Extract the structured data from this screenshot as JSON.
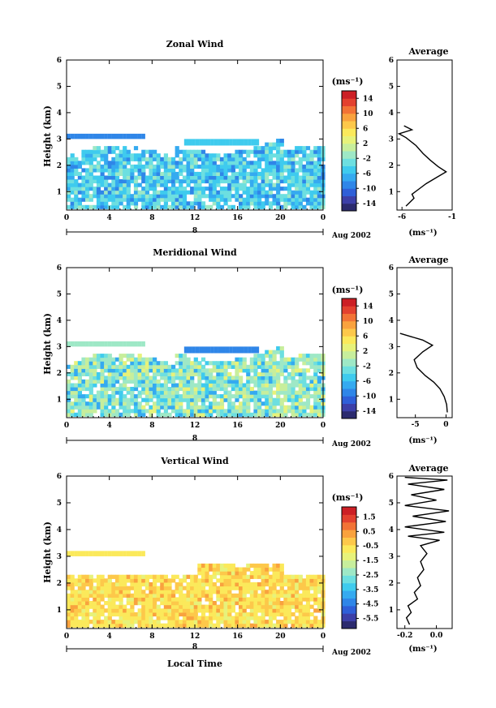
{
  "chart_data": [
    {
      "type": "heatmap",
      "title": "Zonal Wind",
      "ylabel": "Height (km)",
      "x_ticks": [
        "0",
        "4",
        "8",
        "12",
        "16",
        "20",
        "0"
      ],
      "xlim": [
        0,
        24
      ],
      "ylim": [
        0.3,
        6
      ],
      "y_ticks": [
        "1",
        "2",
        "3",
        "4",
        "5",
        "6"
      ],
      "colorbar": {
        "unit": "(ms⁻¹)",
        "range": [
          -16,
          16
        ],
        "ticks": [
          "14",
          "10",
          "6",
          "2",
          "-2",
          "-6",
          "-10",
          "-14"
        ]
      },
      "date_bar": {
        "label": "8",
        "trailing": "Aug 2002"
      },
      "profile": {
        "title": "Average",
        "x_ticks": [
          "-6",
          "-1"
        ],
        "xlim": [
          -6.5,
          -1
        ],
        "xlabel": "(ms⁻¹)",
        "points": [
          [
            -5.6,
            0.45
          ],
          [
            -5.2,
            0.6
          ],
          [
            -4.8,
            0.75
          ],
          [
            -5.0,
            0.9
          ],
          [
            -4.3,
            1.1
          ],
          [
            -3.6,
            1.3
          ],
          [
            -2.5,
            1.55
          ],
          [
            -1.6,
            1.75
          ],
          [
            -2.4,
            1.95
          ],
          [
            -3.2,
            2.2
          ],
          [
            -3.9,
            2.45
          ],
          [
            -4.6,
            2.75
          ],
          [
            -5.6,
            3.05
          ],
          [
            -6.3,
            3.2
          ],
          [
            -5.0,
            3.35
          ],
          [
            -5.8,
            3.5
          ]
        ]
      }
    },
    {
      "type": "heatmap",
      "title": "Meridional Wind",
      "ylabel": "Height (km)",
      "x_ticks": [
        "0",
        "4",
        "8",
        "12",
        "16",
        "20",
        "0"
      ],
      "xlim": [
        0,
        24
      ],
      "ylim": [
        0.3,
        6
      ],
      "y_ticks": [
        "1",
        "2",
        "3",
        "4",
        "5",
        "6"
      ],
      "colorbar": {
        "unit": "(ms⁻¹)",
        "range": [
          -16,
          16
        ],
        "ticks": [
          "14",
          "10",
          "6",
          "2",
          "-2",
          "-6",
          "-10",
          "-14"
        ]
      },
      "date_bar": {
        "label": "8",
        "trailing": "Aug 2002"
      },
      "profile": {
        "title": "Average",
        "x_ticks": [
          "-5",
          "0"
        ],
        "xlim": [
          -8,
          1
        ],
        "xlabel": "(ms⁻¹)",
        "points": [
          [
            0.2,
            0.5
          ],
          [
            0.1,
            0.8
          ],
          [
            -0.3,
            1.1
          ],
          [
            -1.0,
            1.4
          ],
          [
            -2.0,
            1.65
          ],
          [
            -3.4,
            1.9
          ],
          [
            -4.7,
            2.2
          ],
          [
            -5.2,
            2.5
          ],
          [
            -3.8,
            2.8
          ],
          [
            -2.2,
            3.05
          ],
          [
            -3.8,
            3.25
          ],
          [
            -6.0,
            3.4
          ],
          [
            -7.5,
            3.5
          ]
        ]
      }
    },
    {
      "type": "heatmap",
      "title": "Vertical Wind",
      "ylabel": "Height (km)",
      "xlabel": "Local Time",
      "x_ticks": [
        "0",
        "4",
        "8",
        "12",
        "16",
        "20",
        "0"
      ],
      "xlim": [
        0,
        24
      ],
      "ylim": [
        0.3,
        6
      ],
      "y_ticks": [
        "1",
        "2",
        "3",
        "4",
        "5",
        "6"
      ],
      "colorbar": {
        "unit": "(ms⁻¹)",
        "range": [
          -6.2,
          2.2
        ],
        "ticks": [
          "1.5",
          "0.5",
          "-0.5",
          "-1.5",
          "-2.5",
          "-3.5",
          "-4.5",
          "-5.5"
        ]
      },
      "date_bar": {
        "label": "8",
        "trailing": "Aug 2002"
      },
      "profile": {
        "title": "Average",
        "x_ticks": [
          "-0.2",
          "0.0"
        ],
        "xlim": [
          -0.25,
          0.1
        ],
        "xlabel": "(ms⁻¹)",
        "points": [
          [
            -0.17,
            0.45
          ],
          [
            -0.19,
            0.7
          ],
          [
            -0.16,
            0.9
          ],
          [
            -0.18,
            1.15
          ],
          [
            -0.12,
            1.4
          ],
          [
            -0.14,
            1.65
          ],
          [
            -0.1,
            1.9
          ],
          [
            -0.12,
            2.2
          ],
          [
            -0.08,
            2.5
          ],
          [
            -0.1,
            2.8
          ],
          [
            -0.06,
            3.1
          ],
          [
            -0.1,
            3.4
          ],
          [
            0.02,
            3.6
          ],
          [
            -0.18,
            3.75
          ],
          [
            0.05,
            3.9
          ],
          [
            -0.2,
            4.1
          ],
          [
            0.06,
            4.3
          ],
          [
            -0.15,
            4.5
          ],
          [
            0.08,
            4.7
          ],
          [
            -0.2,
            4.9
          ],
          [
            0.0,
            5.1
          ],
          [
            -0.16,
            5.3
          ],
          [
            0.05,
            5.5
          ],
          [
            -0.18,
            5.7
          ],
          [
            0.07,
            5.85
          ],
          [
            -0.2,
            5.95
          ]
        ]
      }
    }
  ]
}
